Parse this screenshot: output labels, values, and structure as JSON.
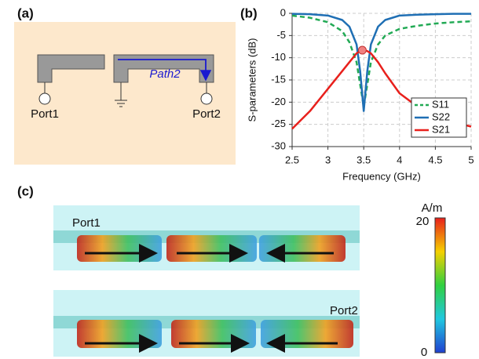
{
  "panel_a": {
    "label": "(a)",
    "path": "Path2",
    "port1": "Port1",
    "port2": "Port2"
  },
  "panel_b": {
    "label": "(b)"
  },
  "chart_data": {
    "type": "line",
    "xlabel": "Frequency (GHz)",
    "ylabel": "S-parameters (dB)",
    "x": [
      2.5,
      2.75,
      3.0,
      3.2,
      3.3,
      3.4,
      3.45,
      3.5,
      3.55,
      3.6,
      3.7,
      3.8,
      4.0,
      4.25,
      4.5,
      4.75,
      5.0
    ],
    "series": [
      {
        "name": "S11",
        "color": "#22aa55",
        "style": "dashed",
        "values": [
          -0.5,
          -1,
          -2,
          -4,
          -6.5,
          -11,
          -16,
          -21,
          -16,
          -11,
          -7,
          -5,
          -3.5,
          -2.8,
          -2.3,
          -2,
          -1.8
        ]
      },
      {
        "name": "S22",
        "color": "#1f6fb4",
        "style": "solid",
        "values": [
          -0.1,
          -0.2,
          -0.5,
          -1.5,
          -3,
          -7,
          -13,
          -22,
          -13,
          -7,
          -3,
          -1.5,
          -0.5,
          -0.3,
          -0.2,
          -0.1,
          -0.1
        ]
      },
      {
        "name": "S21",
        "color": "#e8201c",
        "style": "solid",
        "values": [
          -26,
          -22,
          -17,
          -13,
          -11,
          -9,
          -8.5,
          -8.3,
          -8.5,
          -9,
          -11,
          -13.5,
          -18,
          -21,
          -23,
          -24.5,
          -25.5
        ]
      }
    ],
    "highlight": {
      "x": 3.48,
      "y": -8.3,
      "color": "#f08080"
    },
    "xlim": [
      2.5,
      5
    ],
    "xticks": [
      2.5,
      3,
      3.5,
      4,
      4.5,
      5
    ],
    "ylim": [
      -30,
      0
    ],
    "yticks": [
      0,
      -5,
      -10,
      -15,
      -20,
      -25,
      -30
    ],
    "grid": true,
    "legend": "lower-right"
  },
  "panel_c": {
    "label": "(c)",
    "top_port": "Port1",
    "bottom_port": "Port2",
    "colorbar": {
      "unit": "A/m",
      "max": "20",
      "min": "0"
    }
  }
}
